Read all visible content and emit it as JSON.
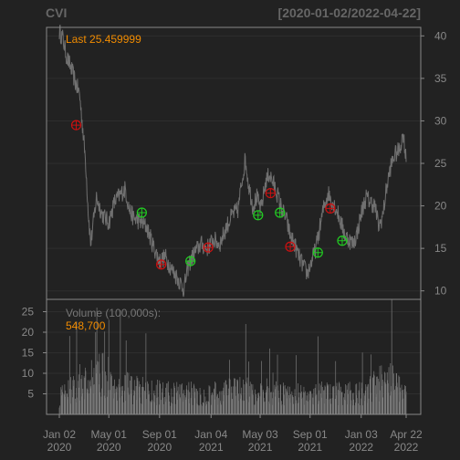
{
  "header": {
    "symbol": "CVI",
    "date_range": "[2020-01-02/2022-04-22]"
  },
  "price_panel": {
    "last_label": "Last 25.459999"
  },
  "volume_panel": {
    "label": "Volume (100,000s):",
    "last_value": "548,700"
  },
  "colors": {
    "background": "#222222",
    "panel_border": "#888888",
    "price_line": "#707070",
    "label_orange": "#f28c00",
    "buy_marker": "#22cc22",
    "sell_marker": "#cc1111",
    "grid": "#2e2e2e",
    "axis_text": "#888888"
  },
  "chart_data": [
    {
      "type": "line",
      "series": [
        {
          "name": "CVI",
          "points": [
            [
              "2020-01-02",
              40.5
            ],
            [
              "2020-01-10",
              39.8
            ],
            [
              "2020-01-20",
              37.5
            ],
            [
              "2020-02-01",
              36.0
            ],
            [
              "2020-02-10",
              34.5
            ],
            [
              "2020-02-20",
              33.2
            ],
            [
              "2020-02-28",
              29.0
            ],
            [
              "2020-03-06",
              25.0
            ],
            [
              "2020-03-12",
              19.5
            ],
            [
              "2020-03-18",
              15.5
            ],
            [
              "2020-03-24",
              17.8
            ],
            [
              "2020-04-01",
              21.0
            ],
            [
              "2020-04-15",
              19.0
            ],
            [
              "2020-05-01",
              18.0
            ],
            [
              "2020-05-15",
              20.5
            ],
            [
              "2020-06-01",
              21.5
            ],
            [
              "2020-06-10",
              22.0
            ],
            [
              "2020-06-20",
              19.5
            ],
            [
              "2020-07-01",
              18.5
            ],
            [
              "2020-07-15",
              18.2
            ],
            [
              "2020-08-01",
              17.5
            ],
            [
              "2020-08-15",
              15.5
            ],
            [
              "2020-09-01",
              13.5
            ],
            [
              "2020-09-15",
              14.0
            ],
            [
              "2020-10-01",
              12.5
            ],
            [
              "2020-10-15",
              11.5
            ],
            [
              "2020-10-30",
              10.2
            ],
            [
              "2020-11-10",
              13.0
            ],
            [
              "2020-11-25",
              14.5
            ],
            [
              "2020-12-10",
              15.5
            ],
            [
              "2020-12-25",
              15.0
            ],
            [
              "2021-01-10",
              16.0
            ],
            [
              "2021-01-25",
              15.5
            ],
            [
              "2021-02-10",
              17.5
            ],
            [
              "2021-02-25",
              19.0
            ],
            [
              "2021-03-10",
              19.5
            ],
            [
              "2021-03-20",
              23.0
            ],
            [
              "2021-03-28",
              25.5
            ],
            [
              "2021-04-05",
              22.5
            ],
            [
              "2021-04-15",
              20.0
            ],
            [
              "2021-04-25",
              21.0
            ],
            [
              "2021-05-05",
              19.5
            ],
            [
              "2021-05-15",
              22.5
            ],
            [
              "2021-05-25",
              23.8
            ],
            [
              "2021-06-05",
              22.5
            ],
            [
              "2021-06-15",
              21.2
            ],
            [
              "2021-06-25",
              19.5
            ],
            [
              "2021-07-05",
              18.5
            ],
            [
              "2021-07-15",
              16.5
            ],
            [
              "2021-07-25",
              15.5
            ],
            [
              "2021-08-05",
              14.0
            ],
            [
              "2021-08-15",
              13.0
            ],
            [
              "2021-08-25",
              12.0
            ],
            [
              "2021-09-05",
              13.5
            ],
            [
              "2021-09-15",
              15.0
            ],
            [
              "2021-09-25",
              17.5
            ],
            [
              "2021-10-05",
              20.0
            ],
            [
              "2021-10-15",
              21.5
            ],
            [
              "2021-10-25",
              20.5
            ],
            [
              "2021-11-05",
              19.5
            ],
            [
              "2021-11-15",
              18.0
            ],
            [
              "2021-11-25",
              16.5
            ],
            [
              "2021-12-05",
              16.0
            ],
            [
              "2021-12-15",
              15.5
            ],
            [
              "2021-12-25",
              17.0
            ],
            [
              "2022-01-05",
              19.5
            ],
            [
              "2022-01-15",
              21.0
            ],
            [
              "2022-01-25",
              20.5
            ],
            [
              "2022-02-05",
              20.0
            ],
            [
              "2022-02-15",
              17.5
            ],
            [
              "2022-02-25",
              19.0
            ],
            [
              "2022-03-05",
              22.0
            ],
            [
              "2022-03-15",
              24.5
            ],
            [
              "2022-03-25",
              26.0
            ],
            [
              "2022-04-05",
              26.5
            ],
            [
              "2022-04-15",
              28.5
            ],
            [
              "2022-04-22",
              25.46
            ]
          ]
        }
      ],
      "markers": [
        {
          "date": "2020-02-12",
          "value": 29.5,
          "kind": "sell"
        },
        {
          "date": "2020-07-20",
          "value": 19.2,
          "kind": "buy"
        },
        {
          "date": "2020-09-05",
          "value": 13.1,
          "kind": "sell"
        },
        {
          "date": "2020-11-15",
          "value": 13.5,
          "kind": "buy"
        },
        {
          "date": "2020-12-28",
          "value": 15.1,
          "kind": "sell"
        },
        {
          "date": "2021-04-28",
          "value": 18.9,
          "kind": "buy"
        },
        {
          "date": "2021-05-28",
          "value": 21.5,
          "kind": "sell"
        },
        {
          "date": "2021-06-20",
          "value": 19.2,
          "kind": "buy"
        },
        {
          "date": "2021-07-15",
          "value": 15.2,
          "kind": "sell"
        },
        {
          "date": "2021-09-20",
          "value": 14.5,
          "kind": "buy"
        },
        {
          "date": "2021-10-20",
          "value": 19.7,
          "kind": "sell"
        },
        {
          "date": "2021-11-18",
          "value": 15.9,
          "kind": "buy"
        }
      ],
      "ylim": [
        9,
        41
      ],
      "y_ticks": [
        10,
        15,
        20,
        25,
        30,
        35,
        40
      ],
      "y_axis_side": "right"
    },
    {
      "type": "bar",
      "series": [
        {
          "name": "Volume (100,000s)",
          "values": []
        }
      ],
      "volume_seed_profile": [
        [
          "2020-01-02",
          4
        ],
        [
          "2020-03-01",
          8
        ],
        [
          "2020-04-15",
          10
        ],
        [
          "2020-07-01",
          6
        ],
        [
          "2020-10-01",
          5
        ],
        [
          "2021-01-01",
          5
        ],
        [
          "2021-04-01",
          6
        ],
        [
          "2021-07-01",
          5
        ],
        [
          "2021-10-01",
          5
        ],
        [
          "2022-01-01",
          5
        ],
        [
          "2022-03-15",
          9
        ],
        [
          "2022-04-22",
          5.487
        ]
      ],
      "ylim": [
        0,
        28
      ],
      "y_ticks": [
        5,
        10,
        15,
        20,
        25
      ],
      "y_axis_side": "left"
    }
  ],
  "x_axis": {
    "range": [
      "2020-01-02",
      "2022-04-22"
    ],
    "ticks": [
      {
        "date": "2020-01-02",
        "label": "Jan 02",
        "year": "2020"
      },
      {
        "date": "2020-05-01",
        "label": "May 01",
        "year": "2020"
      },
      {
        "date": "2020-09-01",
        "label": "Sep 01",
        "year": "2020"
      },
      {
        "date": "2021-01-04",
        "label": "Jan 04",
        "year": "2021"
      },
      {
        "date": "2021-05-03",
        "label": "May 03",
        "year": "2021"
      },
      {
        "date": "2021-09-01",
        "label": "Sep 01",
        "year": "2021"
      },
      {
        "date": "2022-01-03",
        "label": "Jan 03",
        "year": "2022"
      },
      {
        "date": "2022-04-22",
        "label": "Apr 22",
        "year": "2022"
      }
    ]
  }
}
